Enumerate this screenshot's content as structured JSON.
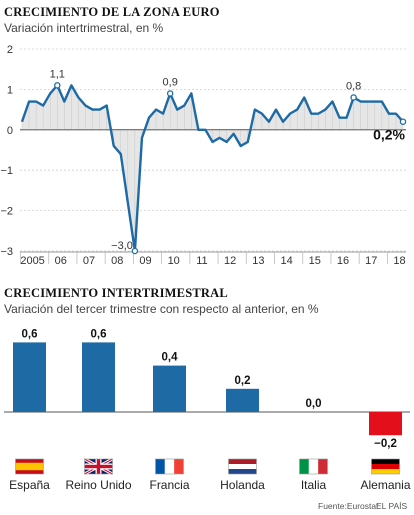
{
  "chart_data": [
    {
      "type": "line",
      "title": "CRECIMIENTO DE LA ZONA EURO",
      "subtitle": "Variación intertrimestral, en %",
      "ylim": [
        -3,
        2
      ],
      "yticks": [
        2,
        1,
        0,
        -1,
        -2,
        -3
      ],
      "xticks": [
        "2005",
        "06",
        "07",
        "08",
        "09",
        "10",
        "11",
        "12",
        "13",
        "14",
        "15",
        "16",
        "17",
        "18"
      ],
      "x_start_year": 2005,
      "quarters_per_year": 4,
      "values": [
        0.2,
        0.7,
        0.7,
        0.6,
        0.9,
        1.1,
        0.7,
        1.1,
        0.8,
        0.6,
        0.5,
        0.5,
        0.6,
        -0.4,
        -0.6,
        -1.8,
        -3.0,
        -0.2,
        0.3,
        0.5,
        0.4,
        0.9,
        0.5,
        0.6,
        0.9,
        0.0,
        0.0,
        -0.3,
        -0.2,
        -0.3,
        -0.1,
        -0.4,
        -0.3,
        0.5,
        0.4,
        0.2,
        0.5,
        0.2,
        0.4,
        0.5,
        0.8,
        0.4,
        0.4,
        0.5,
        0.7,
        0.3,
        0.3,
        0.8,
        0.7,
        0.7,
        0.7,
        0.7,
        0.4,
        0.4,
        0.2
      ],
      "annotations": [
        {
          "index": 5,
          "label": "1,1"
        },
        {
          "index": 16,
          "label": "−3,0"
        },
        {
          "index": 21,
          "label": "0,9"
        },
        {
          "index": 47,
          "label": "0,8"
        },
        {
          "index": 54,
          "label": "0,2%"
        }
      ]
    },
    {
      "type": "bar",
      "title": "CRECIMIENTO INTERTRIMESTRAL",
      "subtitle": "Variación del tercer trimestre con respecto al anterior, en %",
      "categories": [
        "España",
        "Reino Unido",
        "Francia",
        "Holanda",
        "Italia",
        "Alemania"
      ],
      "values": [
        0.6,
        0.6,
        0.4,
        0.2,
        0.0,
        -0.2
      ],
      "labels": [
        "0,6",
        "0,6",
        "0,4",
        "0,2",
        "0,0",
        "−0,2"
      ],
      "colors": [
        "#1d6aa5",
        "#1d6aa5",
        "#1d6aa5",
        "#1d6aa5",
        "#1d6aa5",
        "#e3101b"
      ],
      "flags": [
        "spain-flag-icon",
        "uk-flag-icon",
        "france-flag-icon",
        "netherlands-flag-icon",
        "italy-flag-icon",
        "germany-flag-icon"
      ]
    }
  ],
  "footer": {
    "source": "Fuente:Eurostat",
    "publisher": "EL PAÍS"
  },
  "colors": {
    "line": "#1d6aa5",
    "positive_bar": "#1d6aa5",
    "negative_bar": "#e3101b",
    "area_fill": "#e6e6e6"
  }
}
